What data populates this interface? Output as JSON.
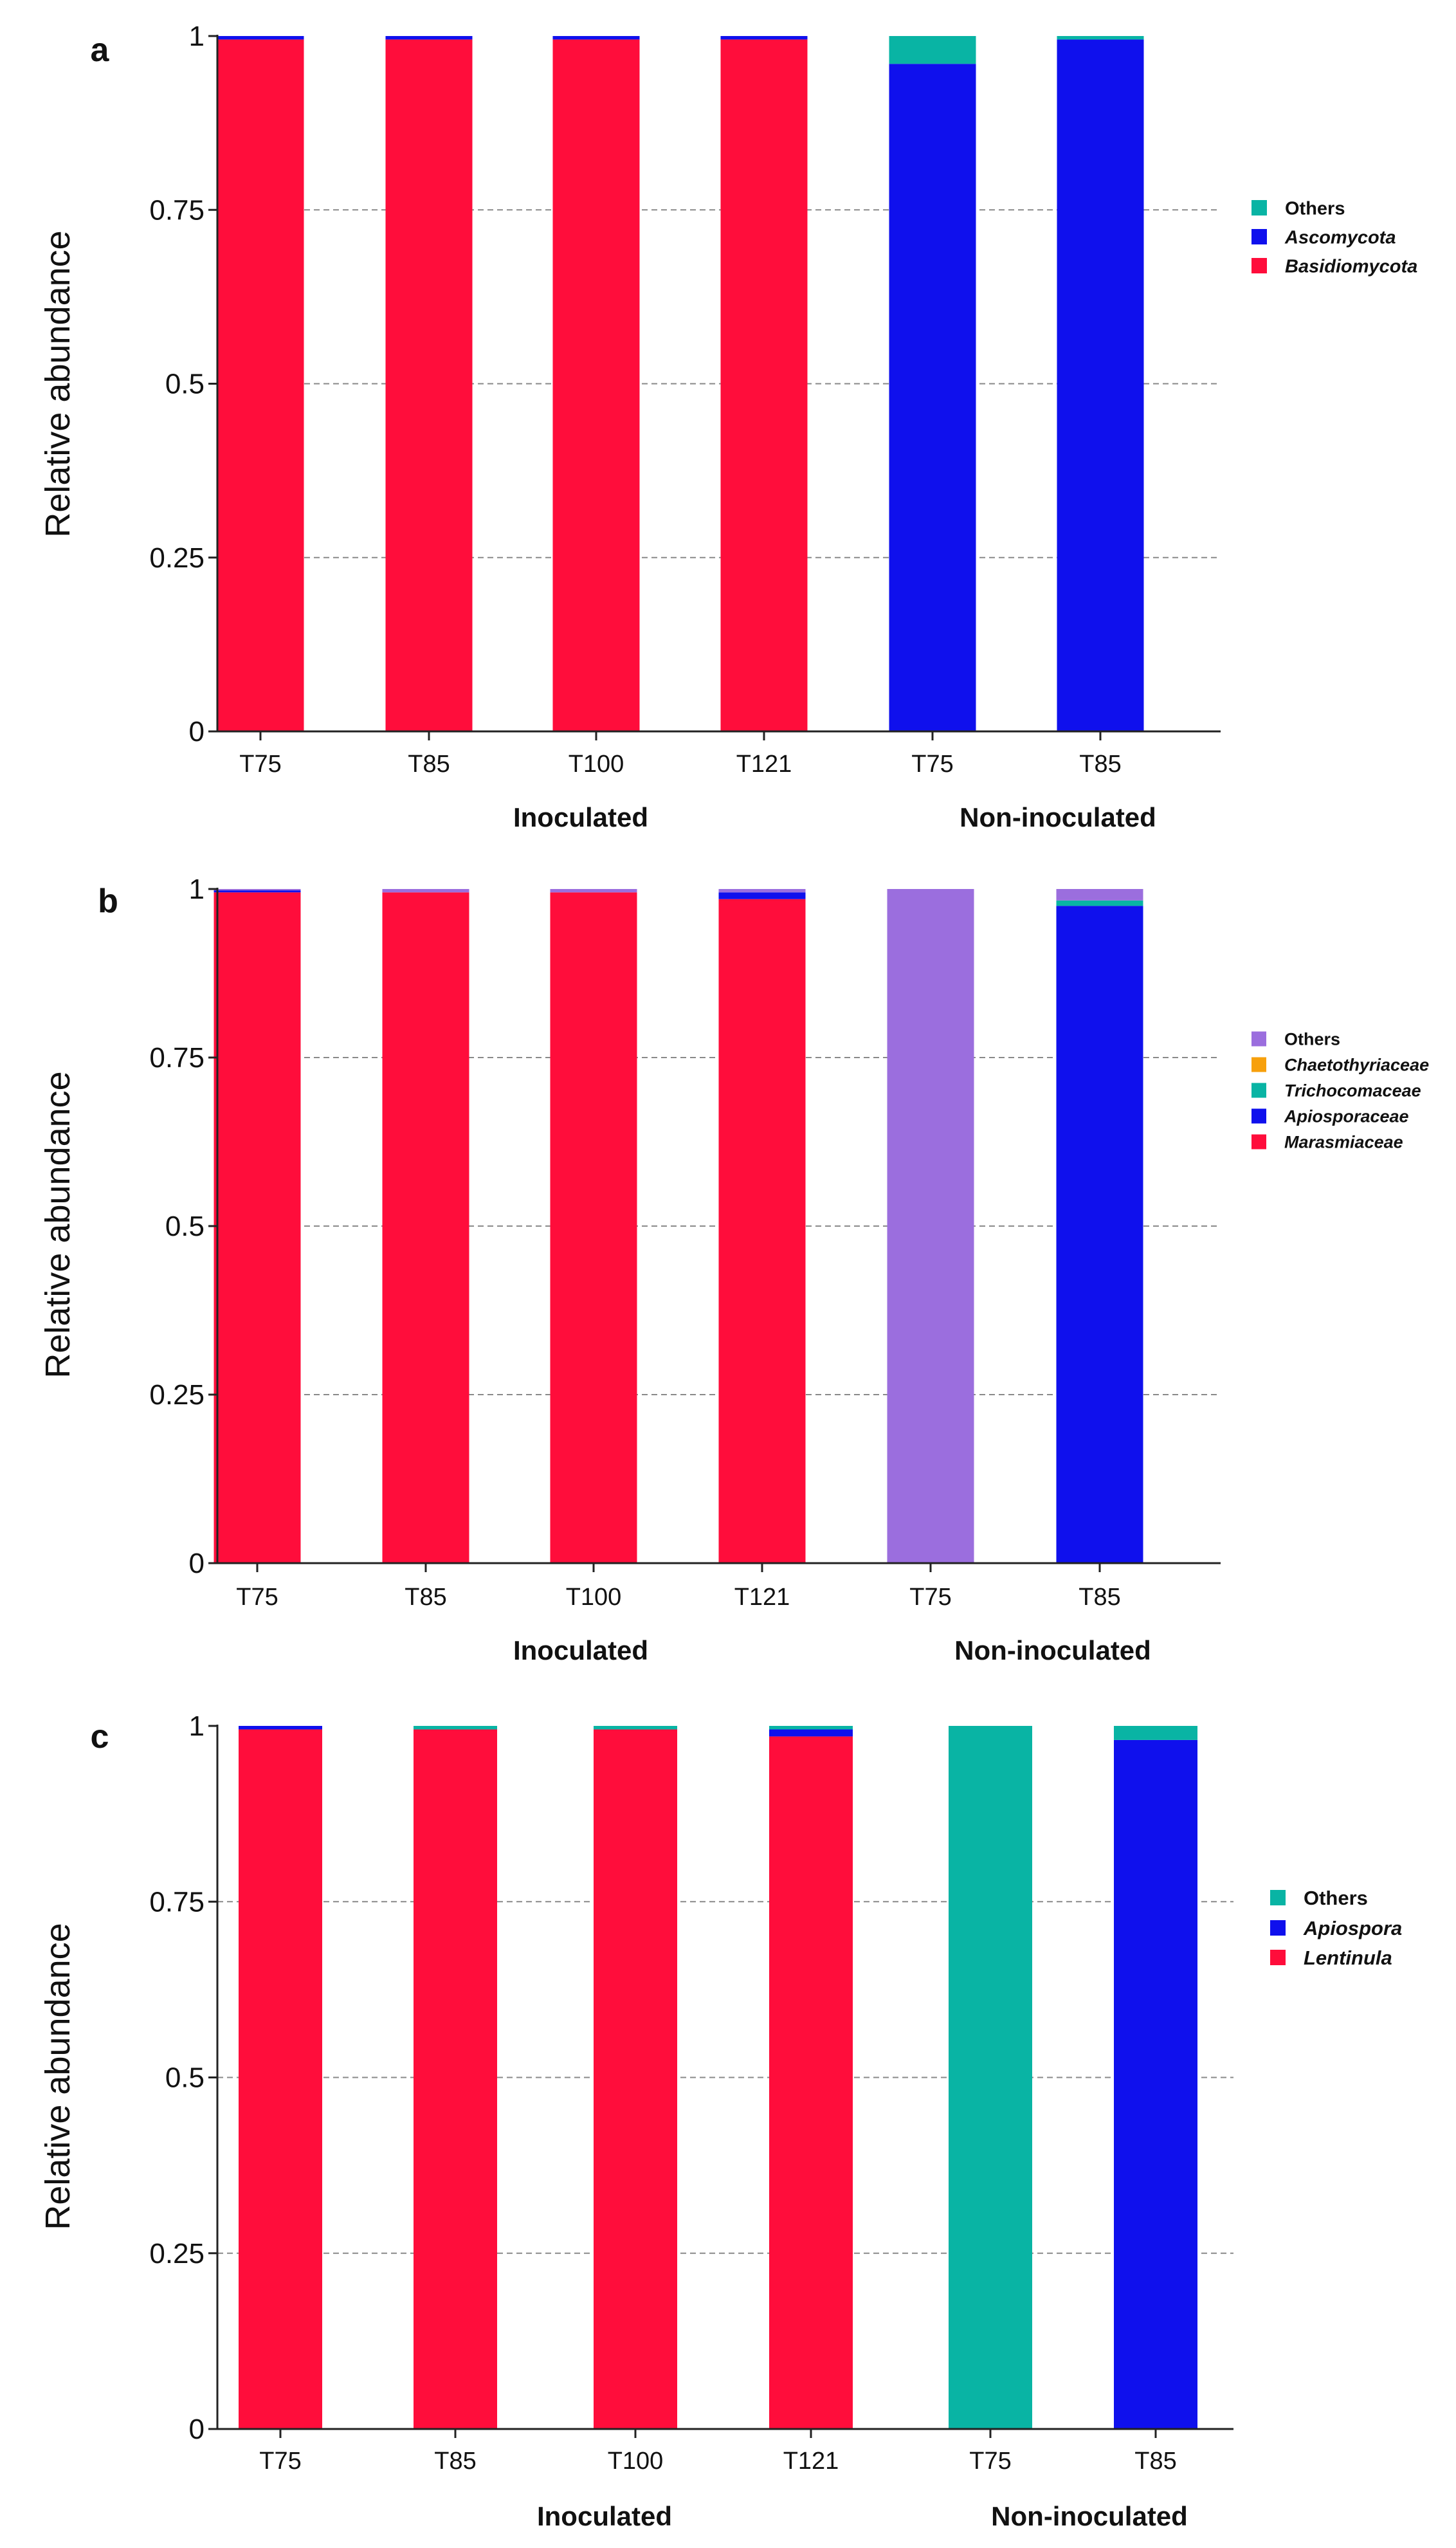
{
  "chart_data": [
    {
      "type": "bar",
      "stacked": true,
      "panel_label": "a",
      "ylabel": "Relative abundance",
      "ylim": [
        0,
        1
      ],
      "yticks": [
        0,
        0.25,
        0.5,
        0.75,
        1
      ],
      "ytick_labels": [
        "0",
        "0.25",
        "0.5",
        "0.75",
        "1"
      ],
      "categories": [
        "T75",
        "T85",
        "T100",
        "T121",
        "T75",
        "T85"
      ],
      "groups": [
        {
          "label": "Inoculated",
          "span": [
            0,
            3
          ]
        },
        {
          "label": "Non-inoculated",
          "span": [
            4,
            5
          ]
        }
      ],
      "series": [
        {
          "name": "Basidiomycota",
          "color": "#ff0d3b",
          "values": [
            0.995,
            0.995,
            0.995,
            0.995,
            0,
            0
          ]
        },
        {
          "name": "Ascomycota",
          "color": "#0f10ed",
          "values": [
            0.005,
            0.005,
            0.005,
            0.005,
            0.96,
            0.995
          ]
        },
        {
          "name": "Others",
          "color": "#09b4a4",
          "values": [
            0,
            0,
            0,
            0,
            0.04,
            0.005
          ]
        }
      ],
      "legend_order": [
        "Others",
        "Ascomycota",
        "Basidiomycota"
      ],
      "legend_position": "right",
      "grid": "horizontal dashed"
    },
    {
      "type": "bar",
      "stacked": true,
      "panel_label": "b",
      "ylabel": "Relative abundance",
      "ylim": [
        0,
        1
      ],
      "yticks": [
        0,
        0.25,
        0.5,
        0.75,
        1
      ],
      "ytick_labels": [
        "0",
        "0.25",
        "0.5",
        "0.75",
        "1"
      ],
      "categories": [
        "T75",
        "T85",
        "T100",
        "T121",
        "T75",
        "T85"
      ],
      "groups": [
        {
          "label": "Inoculated",
          "span": [
            0,
            3
          ]
        },
        {
          "label": "Non-inoculated",
          "span": [
            4,
            5
          ]
        }
      ],
      "series": [
        {
          "name": "Marasmiaceae",
          "color": "#ff0d3b",
          "values": [
            0.995,
            0.995,
            0.995,
            0.985,
            0,
            0
          ]
        },
        {
          "name": "Apiosporaceae",
          "color": "#0f10ed",
          "values": [
            0.003,
            0,
            0,
            0.01,
            0,
            0.975
          ]
        },
        {
          "name": "Trichocomaceae",
          "color": "#09b4a4",
          "values": [
            0,
            0,
            0,
            0,
            0,
            0.008
          ]
        },
        {
          "name": "Chaetothyriaceae",
          "color": "#f7a00c",
          "values": [
            0,
            0,
            0,
            0,
            0,
            0
          ]
        },
        {
          "name": "Others",
          "color": "#9b6ede",
          "values": [
            0.002,
            0.005,
            0.005,
            0.005,
            1,
            0.017
          ]
        }
      ],
      "legend_order": [
        "Others",
        "Chaetothyriaceae",
        "Trichocomaceae",
        "Apiosporaceae",
        "Marasmiaceae"
      ],
      "legend_position": "right",
      "grid": "horizontal dashed"
    },
    {
      "type": "bar",
      "stacked": true,
      "panel_label": "c",
      "ylabel": "Relative abundance",
      "ylim": [
        0,
        1
      ],
      "yticks": [
        0,
        0.25,
        0.5,
        0.75,
        1
      ],
      "ytick_labels": [
        "0",
        "0.25",
        "0.5",
        "0.75",
        "1"
      ],
      "categories": [
        "T75",
        "T85",
        "T100",
        "T121",
        "T75",
        "T85"
      ],
      "groups": [
        {
          "label": "Inoculated",
          "span": [
            0,
            3
          ]
        },
        {
          "label": "Non-inoculated",
          "span": [
            4,
            5
          ]
        }
      ],
      "series": [
        {
          "name": "Lentinula",
          "color": "#ff0d3b",
          "values": [
            0.995,
            0.995,
            0.995,
            0.985,
            0,
            0
          ]
        },
        {
          "name": "Apiospora",
          "color": "#0f10ed",
          "values": [
            0.005,
            0,
            0,
            0.01,
            0,
            0.98
          ]
        },
        {
          "name": "Others",
          "color": "#09b4a4",
          "values": [
            0,
            0.005,
            0.005,
            0.005,
            1,
            0.02
          ]
        }
      ],
      "legend_order": [
        "Others",
        "Apiospora",
        "Lentinula"
      ],
      "legend_position": "right",
      "grid": "horizontal dashed"
    }
  ]
}
